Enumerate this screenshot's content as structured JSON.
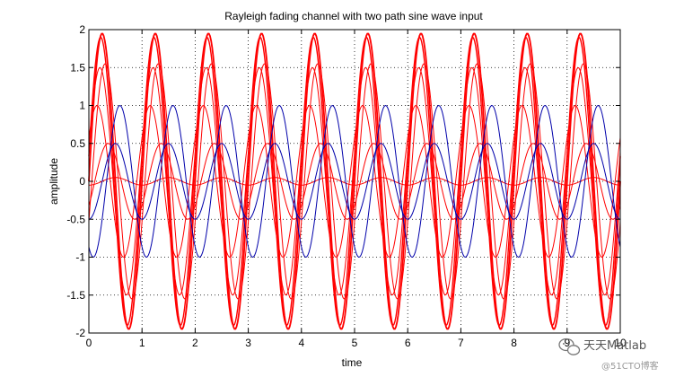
{
  "chart_data": {
    "type": "line",
    "title": "Rayleigh fading channel with two path sine wave input",
    "xlabel": "time",
    "ylabel": "amplitude",
    "xlim": [
      0,
      10
    ],
    "ylim": [
      -2,
      2
    ],
    "xticks": [
      "0",
      "1",
      "2",
      "3",
      "4",
      "5",
      "6",
      "7",
      "8",
      "9",
      "10"
    ],
    "yticks": [
      "-2",
      "-1.5",
      "-1",
      "-0.5",
      "0",
      "0.5",
      "1",
      "1.5",
      "2"
    ],
    "grid": "dotted",
    "sampling": {
      "start": 0,
      "end": 10,
      "step": 0.02
    },
    "series": [
      {
        "color": "#ff0000",
        "width": 1.8,
        "amplitude": 1.95,
        "frequency_hz": 1.0,
        "phase_deg": 0
      },
      {
        "color": "#ff0000",
        "width": 1.4,
        "amplitude": 1.9,
        "frequency_hz": 1.0,
        "phase_deg": 10
      },
      {
        "color": "#ff0000",
        "width": 1.0,
        "amplitude": 1.55,
        "frequency_hz": 1.0,
        "phase_deg": -20
      },
      {
        "color": "#ff0000",
        "width": 1.0,
        "amplitude": 1.5,
        "frequency_hz": 1.0,
        "phase_deg": 15
      },
      {
        "color": "#ff0000",
        "width": 1.0,
        "amplitude": 1.0,
        "frequency_hz": 1.0,
        "phase_deg": 35
      },
      {
        "color": "#ff0000",
        "width": 1.0,
        "amplitude": 0.5,
        "frequency_hz": 1.0,
        "phase_deg": -40
      },
      {
        "color": "#ff0000",
        "width": 1.0,
        "amplitude": 0.05,
        "frequency_hz": 1.0,
        "phase_deg": -90
      },
      {
        "color": "#0000aa",
        "width": 1.0,
        "amplitude": 1.0,
        "frequency_hz": 1.0,
        "phase_deg": -120
      },
      {
        "color": "#0000aa",
        "width": 1.0,
        "amplitude": 0.5,
        "frequency_hz": 1.0,
        "phase_deg": -90
      }
    ]
  },
  "watermark": {
    "main": "天天Matlab",
    "sub": "@51CTO博客"
  }
}
